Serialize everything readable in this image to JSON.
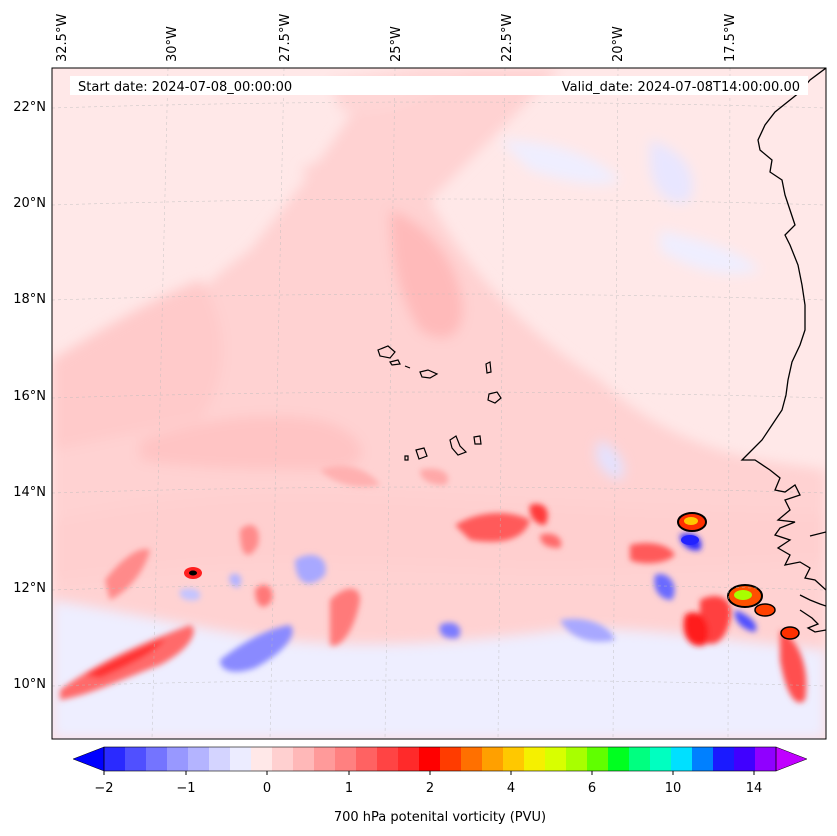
{
  "header": {
    "start_date": "Start date: 2024-07-08_00:00:00",
    "valid_date": "Valid_date: 2024-07-08T14:00:00.00"
  },
  "map": {
    "region": "Eastern tropical Atlantic / West Africa coast",
    "lon_labels": [
      "32.5°W",
      "30°W",
      "27.5°W",
      "25°W",
      "22.5°W",
      "20°W",
      "17.5°W"
    ],
    "lat_labels": [
      "22°N",
      "20°N",
      "18°N",
      "16°N",
      "14°N",
      "12°N",
      "10°N"
    ]
  },
  "colorbar": {
    "title": "700 hPa potenital vorticity (PVU)",
    "ticks": [
      "−2",
      "−1",
      "0",
      "1",
      "2",
      "4",
      "6",
      "10",
      "14"
    ],
    "colors": [
      "#0000ff",
      "#2a2aff",
      "#5050ff",
      "#7474ff",
      "#9898ff",
      "#b4b4ff",
      "#d4d4ff",
      "#ececff",
      "#ffe8e8",
      "#ffd0d0",
      "#ffb8b8",
      "#ff9a9a",
      "#ff8080",
      "#ff6262",
      "#ff4444",
      "#ff2a2a",
      "#ff0000",
      "#ff3c00",
      "#ff7000",
      "#ffa000",
      "#ffc800",
      "#f5f000",
      "#d8ff00",
      "#a8ff00",
      "#60ff00",
      "#00ff20",
      "#00ff80",
      "#00ffc0",
      "#00e0ff",
      "#0080ff",
      "#1a1aff",
      "#4000ff",
      "#9000ff",
      "#c000ff"
    ]
  }
}
